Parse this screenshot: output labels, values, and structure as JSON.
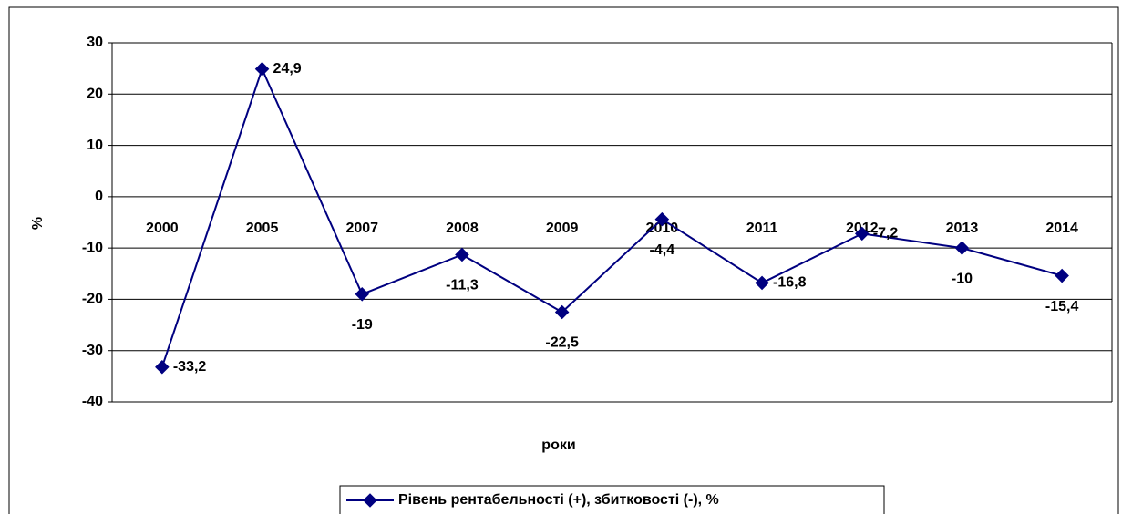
{
  "chart_data": {
    "type": "line",
    "categories": [
      "2000",
      "2005",
      "2007",
      "2008",
      "2009",
      "2010",
      "2011",
      "2012",
      "2013",
      "2014"
    ],
    "series": [
      {
        "name": "Рівень рентабельності (+), збитковості (-), %",
        "color": "#000080",
        "values": [
          -33.2,
          24.9,
          -19,
          -11.3,
          -22.5,
          -4.4,
          -16.8,
          -7.2,
          -10,
          -15.4
        ],
        "value_labels": [
          "-33,2",
          "24,9",
          "-19",
          "-11,3",
          "-22,5",
          "-4,4",
          "-16,8",
          "-7,2",
          "-10",
          "-15,4"
        ]
      }
    ],
    "y_label": "%",
    "x_label": "роки",
    "ylim": [
      -40,
      30
    ],
    "yticks": [
      30,
      20,
      10,
      0,
      -10,
      -20,
      -30,
      -40
    ],
    "grid": true,
    "legend": "bottom"
  }
}
